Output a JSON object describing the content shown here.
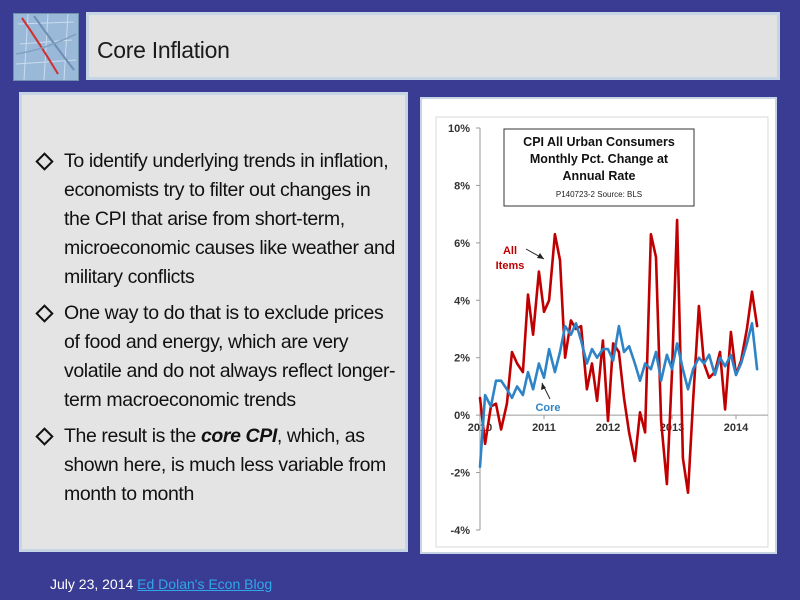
{
  "slide": {
    "title": "Core Inflation",
    "bullets": [
      {
        "text": "To identify underlying trends in inflation, economists try to filter out changes in the CPI that arise from short-term, microeconomic causes like weather and military conflicts"
      },
      {
        "text": "One way to do that is to exclude prices of food and energy, which are very volatile and do not always reflect longer-term macroeconomic trends"
      },
      {
        "before": "The result is the ",
        "emphasis": "core CPI",
        "after": ", which, as shown here, is much less variable from month to month"
      }
    ],
    "footer": {
      "date": "July 23, 2014 ",
      "link_label": "Ed Dolan's Econ Blog"
    }
  },
  "colors": {
    "all_items": "#c00000",
    "core": "#2e84c6",
    "background": "#3a3c94"
  },
  "chart_data": {
    "type": "line",
    "title": "CPI All Urban Consumers Monthly Pct. Change at Annual Rate",
    "title_lines": [
      "CPI All Urban Consumers",
      "Monthly Pct. Change at",
      "Annual Rate"
    ],
    "subtitle": "P140723-2 Source: BLS",
    "xlabel": "",
    "ylabel": "",
    "ylim": [
      -4,
      10
    ],
    "xlim": [
      2010.0,
      2014.5
    ],
    "y_ticks": [
      10,
      8,
      6,
      4,
      2,
      0,
      -2,
      -4
    ],
    "y_tick_labels": [
      "10%",
      "8%",
      "6%",
      "4%",
      "2%",
      "0%",
      "-2%",
      "-4%"
    ],
    "x_ticks": [
      2010,
      2011,
      2012,
      2013,
      2014
    ],
    "x_tick_labels": [
      "2010",
      "2011",
      "2012",
      "2013",
      "2014"
    ],
    "annotations": [
      {
        "text_lines": [
          "All",
          "Items"
        ],
        "series": "All Items"
      },
      {
        "text_lines": [
          "Core"
        ],
        "series": "Core"
      }
    ],
    "series": [
      {
        "name": "All Items",
        "color": "#c00000",
        "values": [
          [
            2010.0,
            0.6
          ],
          [
            2010.08,
            -1.0
          ],
          [
            2010.17,
            0.3
          ],
          [
            2010.25,
            0.4
          ],
          [
            2010.33,
            -0.5
          ],
          [
            2010.42,
            0.4
          ],
          [
            2010.5,
            2.2
          ],
          [
            2010.58,
            1.8
          ],
          [
            2010.67,
            1.5
          ],
          [
            2010.75,
            4.2
          ],
          [
            2010.83,
            2.8
          ],
          [
            2010.92,
            5.0
          ],
          [
            2011.0,
            3.6
          ],
          [
            2011.08,
            4.0
          ],
          [
            2011.17,
            6.3
          ],
          [
            2011.25,
            5.4
          ],
          [
            2011.33,
            2.0
          ],
          [
            2011.42,
            3.3
          ],
          [
            2011.5,
            3.0
          ],
          [
            2011.58,
            3.1
          ],
          [
            2011.67,
            0.9
          ],
          [
            2011.75,
            1.8
          ],
          [
            2011.83,
            0.5
          ],
          [
            2011.92,
            2.6
          ],
          [
            2012.0,
            -0.2
          ],
          [
            2012.08,
            2.5
          ],
          [
            2012.17,
            2.2
          ],
          [
            2012.25,
            0.6
          ],
          [
            2012.33,
            -0.6
          ],
          [
            2012.42,
            -1.6
          ],
          [
            2012.5,
            0.1
          ],
          [
            2012.58,
            -0.6
          ],
          [
            2012.67,
            6.3
          ],
          [
            2012.75,
            5.5
          ],
          [
            2012.83,
            -0.2
          ],
          [
            2012.92,
            -2.4
          ],
          [
            2013.0,
            1.5
          ],
          [
            2013.08,
            6.8
          ],
          [
            2013.17,
            -1.5
          ],
          [
            2013.25,
            -2.7
          ],
          [
            2013.33,
            0.5
          ],
          [
            2013.42,
            3.8
          ],
          [
            2013.5,
            1.8
          ],
          [
            2013.58,
            1.3
          ],
          [
            2013.67,
            1.5
          ],
          [
            2013.75,
            2.2
          ],
          [
            2013.83,
            0.2
          ],
          [
            2013.92,
            2.9
          ],
          [
            2014.0,
            1.4
          ],
          [
            2014.08,
            1.9
          ],
          [
            2014.17,
            3.0
          ],
          [
            2014.25,
            4.3
          ],
          [
            2014.33,
            3.1
          ]
        ]
      },
      {
        "name": "Core",
        "color": "#2e84c6",
        "values": [
          [
            2010.0,
            -1.8
          ],
          [
            2010.08,
            0.7
          ],
          [
            2010.17,
            0.3
          ],
          [
            2010.25,
            1.2
          ],
          [
            2010.33,
            1.2
          ],
          [
            2010.42,
            0.9
          ],
          [
            2010.5,
            0.6
          ],
          [
            2010.58,
            1.0
          ],
          [
            2010.67,
            0.7
          ],
          [
            2010.75,
            1.5
          ],
          [
            2010.83,
            0.9
          ],
          [
            2010.92,
            1.8
          ],
          [
            2011.0,
            1.3
          ],
          [
            2011.08,
            2.3
          ],
          [
            2011.17,
            1.5
          ],
          [
            2011.25,
            2.2
          ],
          [
            2011.33,
            3.1
          ],
          [
            2011.42,
            2.8
          ],
          [
            2011.5,
            3.2
          ],
          [
            2011.58,
            2.6
          ],
          [
            2011.67,
            1.8
          ],
          [
            2011.75,
            2.3
          ],
          [
            2011.83,
            2.0
          ],
          [
            2011.92,
            2.3
          ],
          [
            2012.0,
            2.3
          ],
          [
            2012.08,
            1.9
          ],
          [
            2012.17,
            3.1
          ],
          [
            2012.25,
            2.2
          ],
          [
            2012.33,
            2.4
          ],
          [
            2012.42,
            1.8
          ],
          [
            2012.5,
            1.2
          ],
          [
            2012.58,
            1.8
          ],
          [
            2012.67,
            1.6
          ],
          [
            2012.75,
            2.2
          ],
          [
            2012.83,
            1.2
          ],
          [
            2012.92,
            2.1
          ],
          [
            2013.0,
            1.6
          ],
          [
            2013.08,
            2.5
          ],
          [
            2013.17,
            1.6
          ],
          [
            2013.25,
            0.9
          ],
          [
            2013.33,
            1.6
          ],
          [
            2013.42,
            2.0
          ],
          [
            2013.5,
            1.8
          ],
          [
            2013.58,
            2.1
          ],
          [
            2013.67,
            1.4
          ],
          [
            2013.75,
            2.0
          ],
          [
            2013.83,
            1.7
          ],
          [
            2013.92,
            2.1
          ],
          [
            2014.0,
            1.4
          ],
          [
            2014.08,
            1.8
          ],
          [
            2014.17,
            2.5
          ],
          [
            2014.25,
            3.2
          ],
          [
            2014.33,
            1.6
          ]
        ]
      }
    ]
  }
}
